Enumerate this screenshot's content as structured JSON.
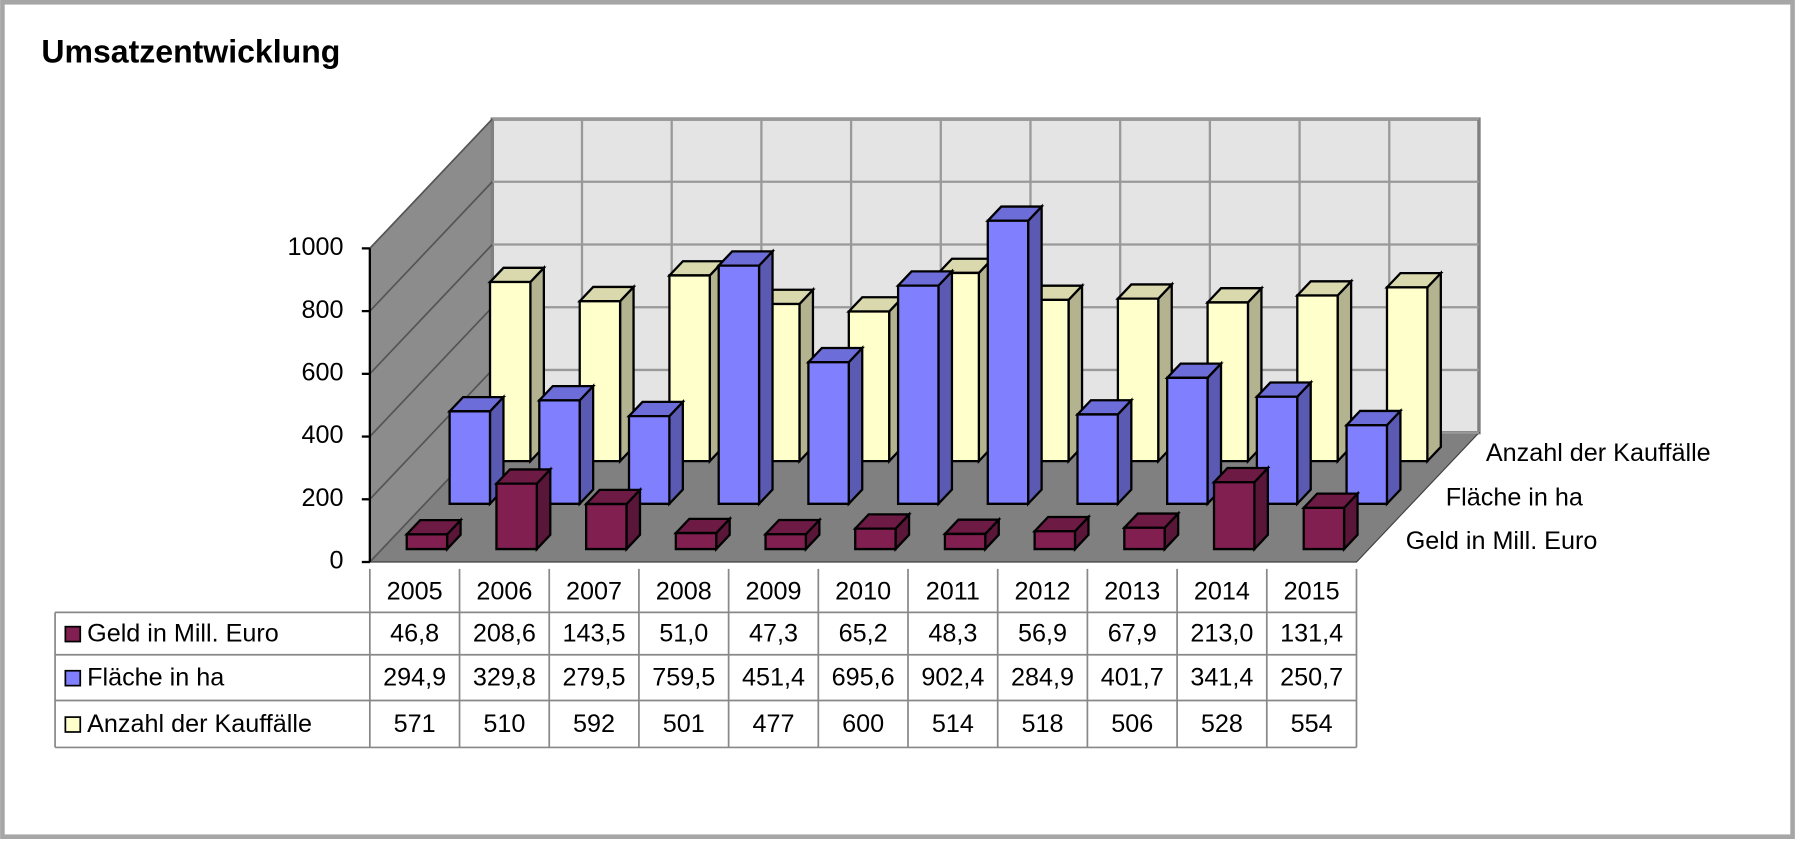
{
  "chart_data": {
    "type": "bar3d",
    "title": "Umsatzentwicklung",
    "categories": [
      "2005",
      "2006",
      "2007",
      "2008",
      "2009",
      "2010",
      "2011",
      "2012",
      "2013",
      "2014",
      "2015"
    ],
    "series": [
      {
        "name": "Geld in Mill. Euro",
        "color": "#801f50",
        "values": [
          46.8,
          208.6,
          143.5,
          51.0,
          47.3,
          65.2,
          48.3,
          56.9,
          67.9,
          213.0,
          131.4
        ],
        "value_labels": [
          "46,8",
          "208,6",
          "143,5",
          "51,0",
          "47,3",
          "65,2",
          "48,3",
          "56,9",
          "67,9",
          "213,0",
          "131,4"
        ]
      },
      {
        "name": "Fläche in ha",
        "color": "#8080ff",
        "values": [
          294.9,
          329.8,
          279.5,
          759.5,
          451.4,
          695.6,
          902.4,
          284.9,
          401.7,
          341.4,
          250.7
        ],
        "value_labels": [
          "294,9",
          "329,8",
          "279,5",
          "759,5",
          "451,4",
          "695,6",
          "902,4",
          "284,9",
          "401,7",
          "341,4",
          "250,7"
        ]
      },
      {
        "name": "Anzahl der Kauffälle",
        "color": "#ffffcc",
        "values": [
          571,
          510,
          592,
          501,
          477,
          600,
          514,
          518,
          506,
          528,
          554
        ]
      }
    ],
    "ylim": [
      0,
      1000
    ],
    "yticks": [
      0,
      200,
      400,
      600,
      800,
      1000
    ],
    "grid": true
  }
}
